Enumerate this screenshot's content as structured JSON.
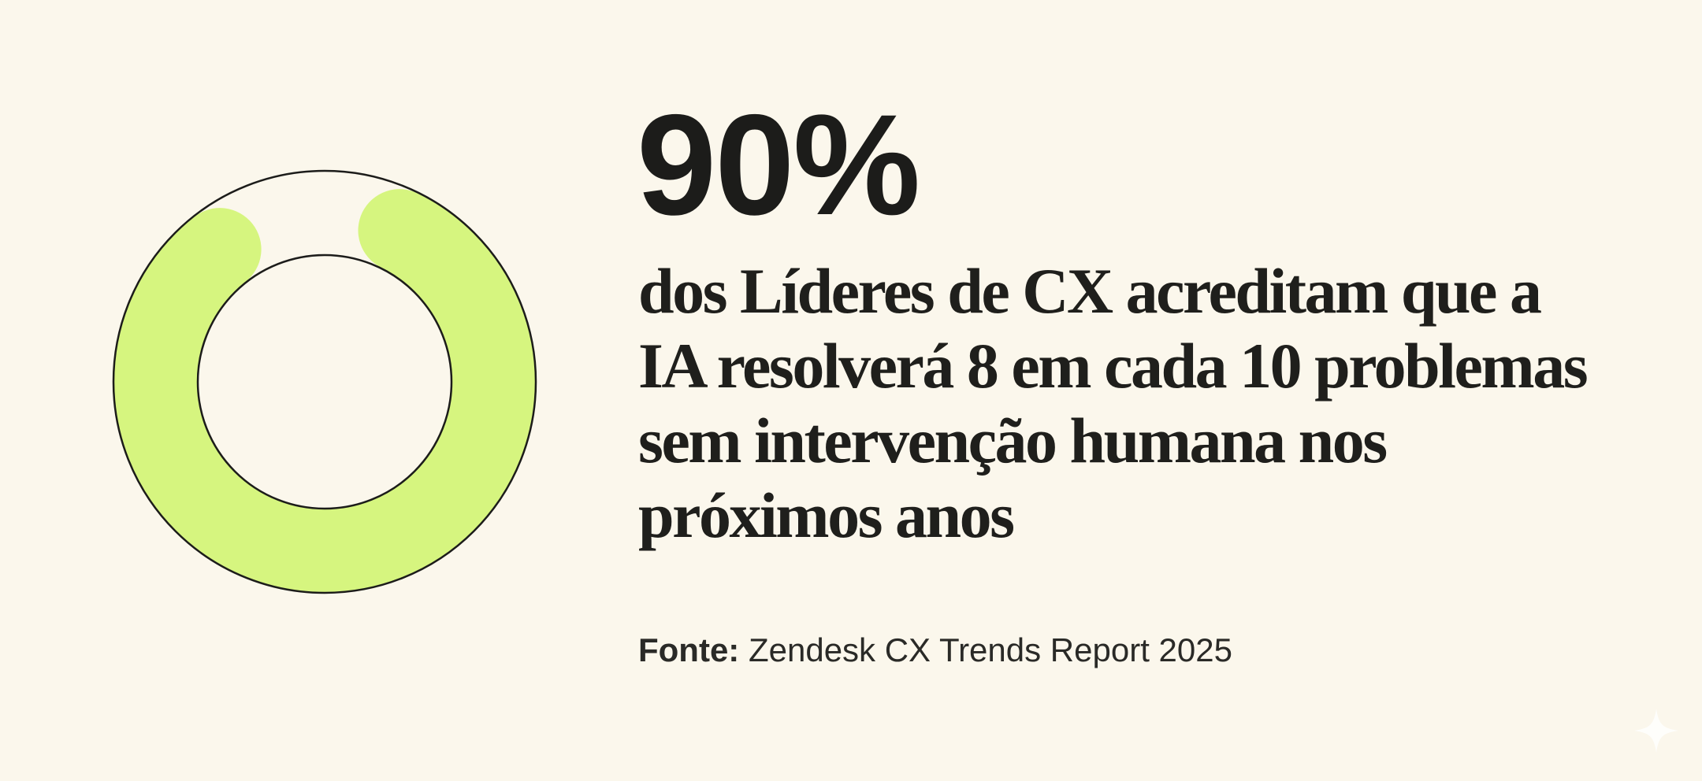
{
  "chart_data": {
    "type": "pie",
    "variant": "donut",
    "values": [
      90,
      10
    ],
    "value_percent": 90,
    "colors": {
      "filled": "#d6f57f",
      "empty": "#fbf7ec",
      "outline": "#1c1c1a"
    }
  },
  "headline": {
    "value": "90%"
  },
  "description": {
    "lines": [
      "dos Líderes de CX acreditam que a",
      "IA resolverá 8 em cada 10 problemas",
      "sem intervenção humana nos",
      "próximos anos"
    ]
  },
  "source": {
    "label": "Fonte:",
    "text": " Zendesk CX Trends Report 2025"
  },
  "icons": {
    "corner": "sparkle-icon"
  }
}
